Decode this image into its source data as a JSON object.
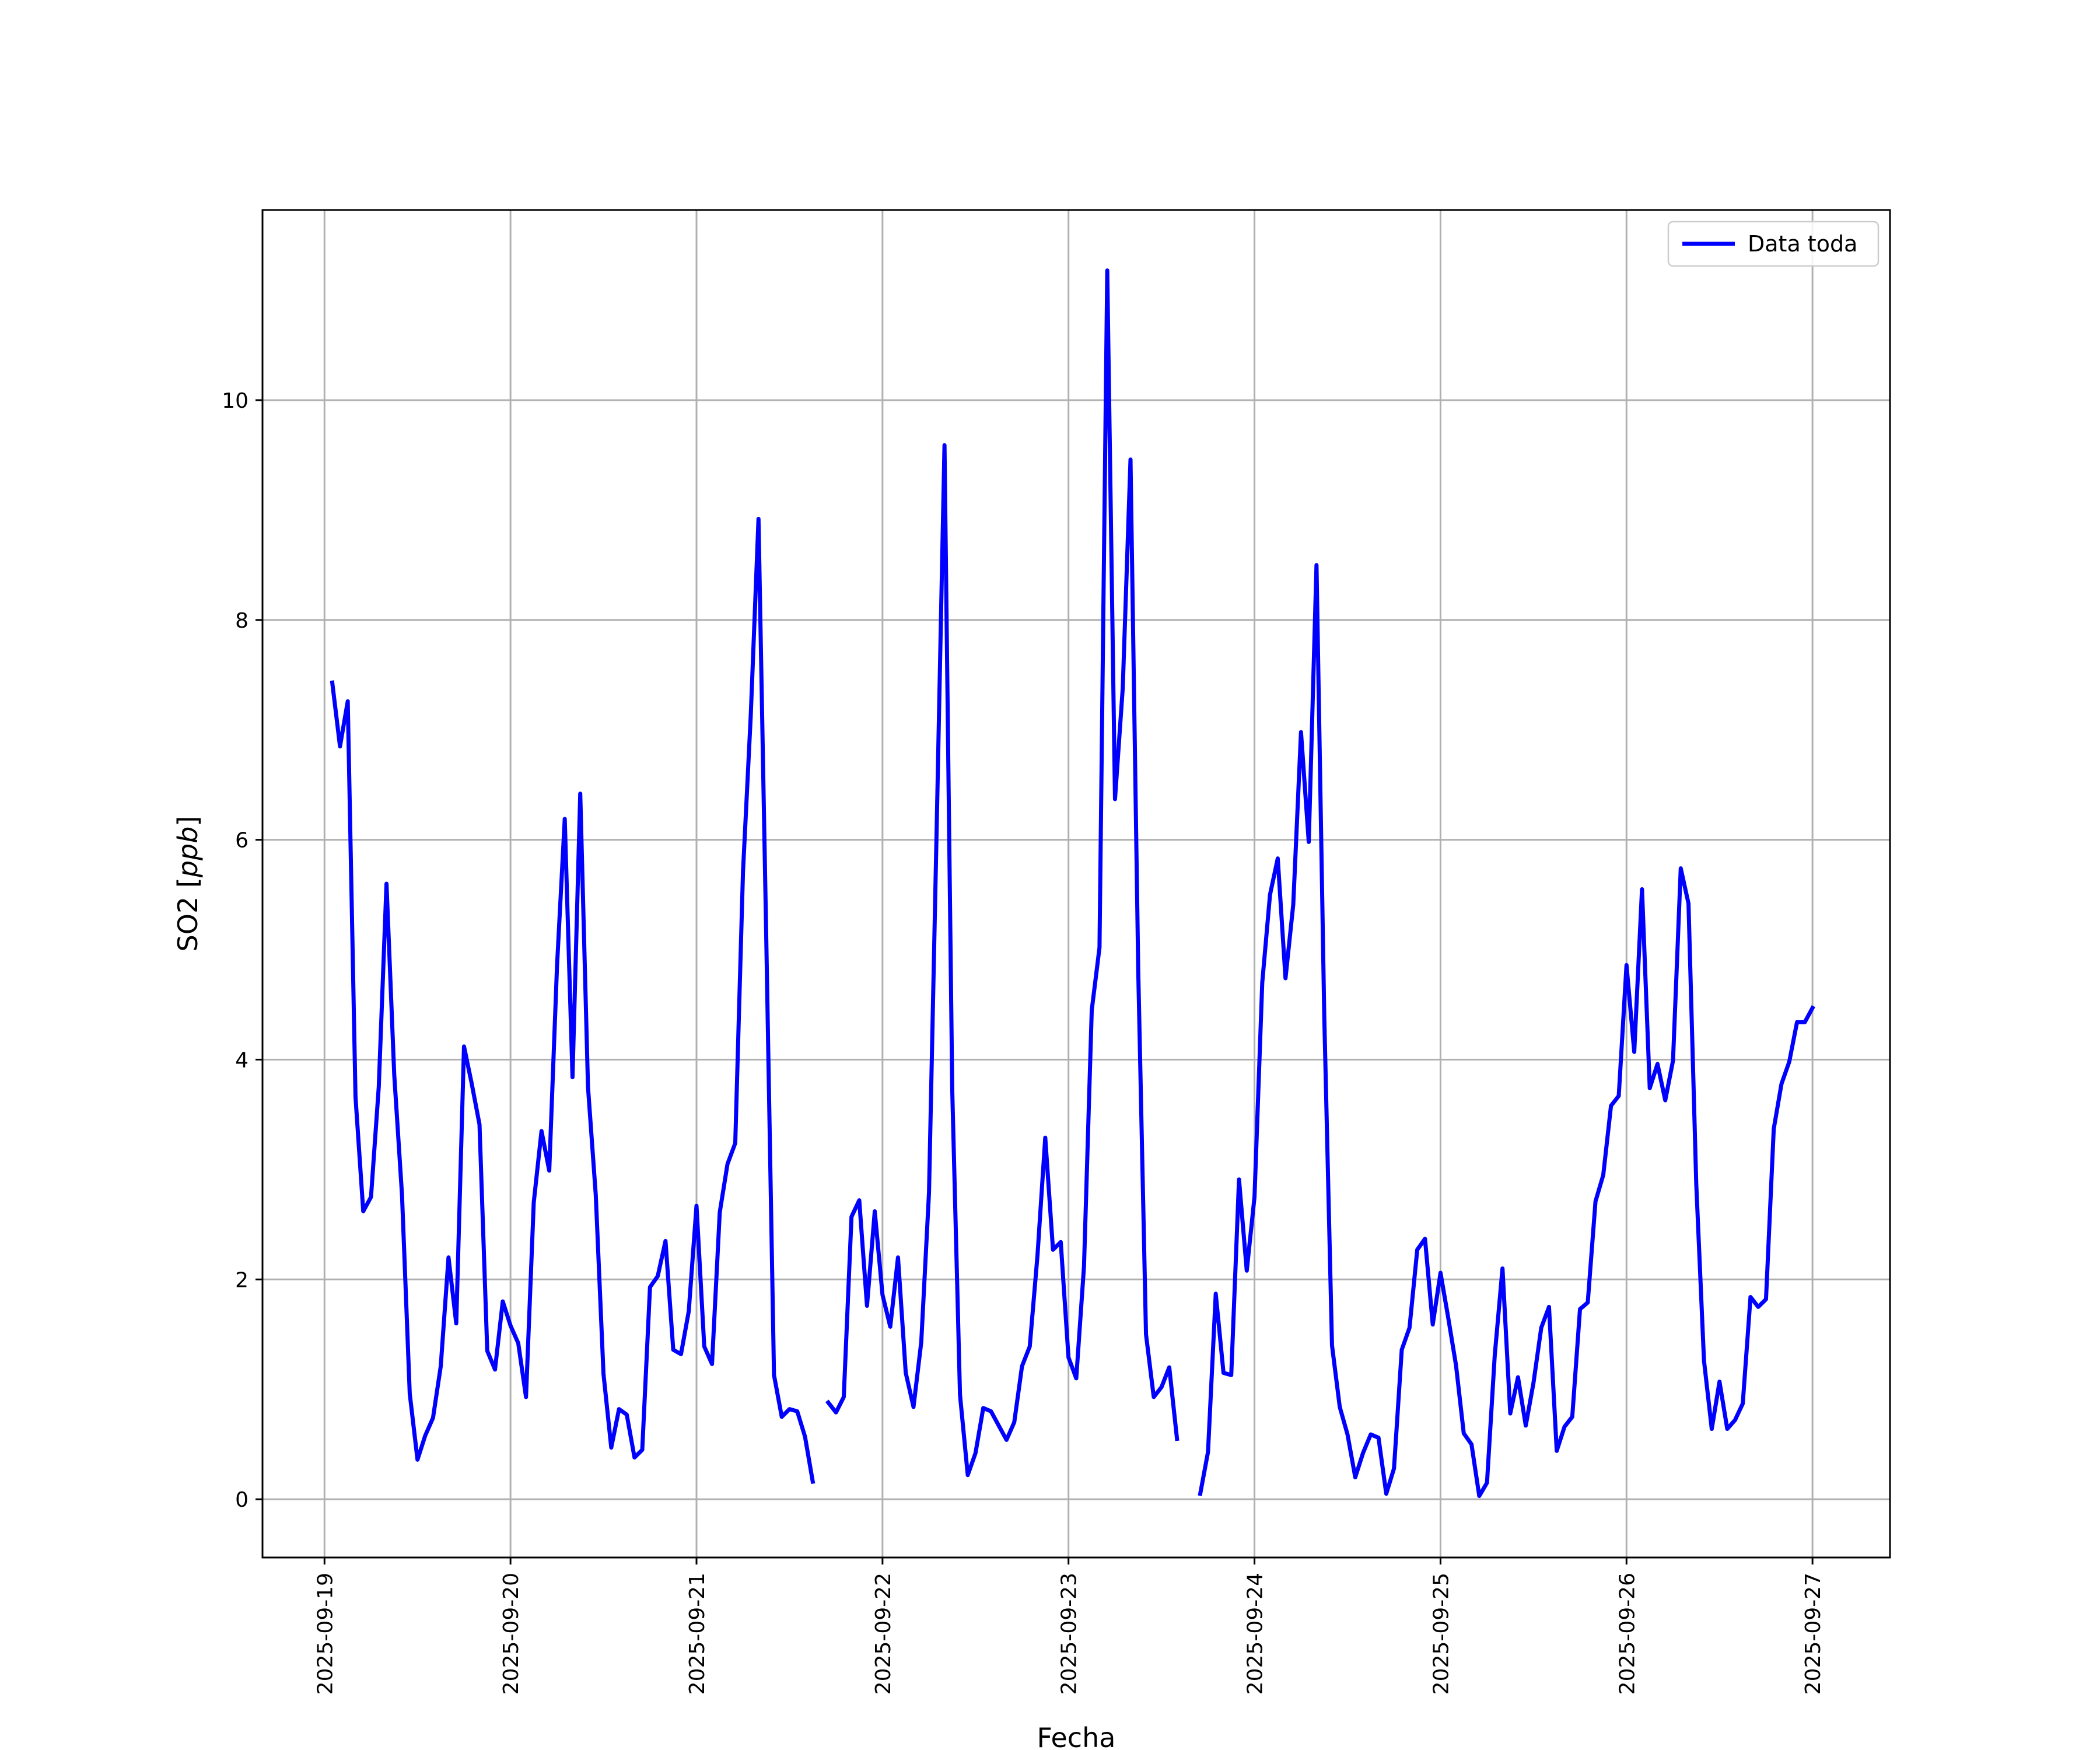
{
  "chart_data": {
    "type": "line",
    "xlabel": "Fecha",
    "ylabel": "SO2 [ppb]",
    "ylabel_plain": "SO2 [",
    "ylabel_italic": "ppb",
    "ylabel_close": "]",
    "xlim": [
      "2025-09-18 16:00",
      "2025-09-27 10:00"
    ],
    "ylim": [
      -0.53,
      11.73
    ],
    "xticks": [
      "2025-09-19",
      "2025-09-20",
      "2025-09-21",
      "2025-09-22",
      "2025-09-23",
      "2025-09-24",
      "2025-09-25",
      "2025-09-26",
      "2025-09-27"
    ],
    "yticks": [
      0,
      2,
      4,
      6,
      8,
      10
    ],
    "grid": true,
    "legend_position": "top-right",
    "series": [
      {
        "name": "Data toda",
        "color": "#0000ff",
        "points": [
          [
            "2025-09-19 01:00",
            7.43
          ],
          [
            "2025-09-19 02:00",
            6.85
          ],
          [
            "2025-09-19 03:00",
            7.26
          ],
          [
            "2025-09-19 04:00",
            3.66
          ],
          [
            "2025-09-19 05:00",
            2.62
          ],
          [
            "2025-09-19 06:00",
            2.75
          ],
          [
            "2025-09-19 07:00",
            3.75
          ],
          [
            "2025-09-19 08:00",
            5.6
          ],
          [
            "2025-09-19 09:00",
            3.86
          ],
          [
            "2025-09-19 10:00",
            2.77
          ],
          [
            "2025-09-19 11:00",
            0.96
          ],
          [
            "2025-09-19 12:00",
            0.36
          ],
          [
            "2025-09-19 13:00",
            0.58
          ],
          [
            "2025-09-19 14:00",
            0.74
          ],
          [
            "2025-09-19 15:00",
            1.21
          ],
          [
            "2025-09-19 16:00",
            2.2
          ],
          [
            "2025-09-19 17:00",
            1.6
          ],
          [
            "2025-09-19 18:00",
            4.12
          ],
          [
            "2025-09-19 19:00",
            3.78
          ],
          [
            "2025-09-19 20:00",
            3.41
          ],
          [
            "2025-09-19 21:00",
            1.35
          ],
          [
            "2025-09-19 22:00",
            1.18
          ],
          [
            "2025-09-19 23:00",
            1.8
          ],
          [
            "2025-09-20 00:00",
            1.58
          ],
          [
            "2025-09-20 01:00",
            1.42
          ],
          [
            "2025-09-20 02:00",
            0.93
          ],
          [
            "2025-09-20 03:00",
            2.7
          ],
          [
            "2025-09-20 04:00",
            3.35
          ],
          [
            "2025-09-20 05:00",
            2.99
          ],
          [
            "2025-09-20 06:00",
            4.85
          ],
          [
            "2025-09-20 07:00",
            6.19
          ],
          [
            "2025-09-20 08:00",
            3.84
          ],
          [
            "2025-09-20 09:00",
            6.42
          ],
          [
            "2025-09-20 10:00",
            3.75
          ],
          [
            "2025-09-20 11:00",
            2.77
          ],
          [
            "2025-09-20 12:00",
            1.14
          ],
          [
            "2025-09-20 13:00",
            0.47
          ],
          [
            "2025-09-20 14:00",
            0.82
          ],
          [
            "2025-09-20 15:00",
            0.77
          ],
          [
            "2025-09-20 16:00",
            0.38
          ],
          [
            "2025-09-20 17:00",
            0.45
          ],
          [
            "2025-09-20 18:00",
            1.93
          ],
          [
            "2025-09-20 19:00",
            2.03
          ],
          [
            "2025-09-20 20:00",
            2.35
          ],
          [
            "2025-09-20 21:00",
            1.36
          ],
          [
            "2025-09-20 22:00",
            1.32
          ],
          [
            "2025-09-20 23:00",
            1.71
          ],
          [
            "2025-09-21 00:00",
            2.67
          ],
          [
            "2025-09-21 01:00",
            1.39
          ],
          [
            "2025-09-21 02:00",
            1.23
          ],
          [
            "2025-09-21 03:00",
            2.61
          ],
          [
            "2025-09-21 04:00",
            3.05
          ],
          [
            "2025-09-21 05:00",
            3.24
          ],
          [
            "2025-09-21 06:00",
            5.71
          ],
          [
            "2025-09-21 07:00",
            7.13
          ],
          [
            "2025-09-21 08:00",
            8.92
          ],
          [
            "2025-09-21 09:00",
            5.11
          ],
          [
            "2025-09-21 10:00",
            1.13
          ],
          [
            "2025-09-21 11:00",
            0.75
          ],
          [
            "2025-09-21 12:00",
            0.82
          ],
          [
            "2025-09-21 13:00",
            0.8
          ],
          [
            "2025-09-21 14:00",
            0.57
          ],
          [
            "2025-09-21 15:00",
            0.16
          ],
          [
            "2025-09-21 16:00",
            null
          ],
          [
            "2025-09-21 17:00",
            0.88
          ],
          [
            "2025-09-21 18:00",
            0.79
          ],
          [
            "2025-09-21 19:00",
            0.93
          ],
          [
            "2025-09-21 20:00",
            2.57
          ],
          [
            "2025-09-21 21:00",
            2.72
          ],
          [
            "2025-09-21 22:00",
            1.76
          ],
          [
            "2025-09-21 23:00",
            2.62
          ],
          [
            "2025-09-22 00:00",
            1.86
          ],
          [
            "2025-09-22 01:00",
            1.57
          ],
          [
            "2025-09-22 02:00",
            2.2
          ],
          [
            "2025-09-22 03:00",
            1.15
          ],
          [
            "2025-09-22 04:00",
            0.84
          ],
          [
            "2025-09-22 05:00",
            1.43
          ],
          [
            "2025-09-22 06:00",
            2.79
          ],
          [
            "2025-09-22 07:00",
            6.14
          ],
          [
            "2025-09-22 08:00",
            9.59
          ],
          [
            "2025-09-22 09:00",
            3.72
          ],
          [
            "2025-09-22 10:00",
            0.95
          ],
          [
            "2025-09-22 11:00",
            0.22
          ],
          [
            "2025-09-22 12:00",
            0.42
          ],
          [
            "2025-09-22 13:00",
            0.83
          ],
          [
            "2025-09-22 14:00",
            0.8
          ],
          [
            "2025-09-22 15:00",
            0.67
          ],
          [
            "2025-09-22 16:00",
            0.54
          ],
          [
            "2025-09-22 17:00",
            0.7
          ],
          [
            "2025-09-22 18:00",
            1.21
          ],
          [
            "2025-09-22 19:00",
            1.39
          ],
          [
            "2025-09-22 20:00",
            2.22
          ],
          [
            "2025-09-22 21:00",
            3.29
          ],
          [
            "2025-09-22 22:00",
            2.27
          ],
          [
            "2025-09-22 23:00",
            2.34
          ],
          [
            "2025-09-23 00:00",
            1.29
          ],
          [
            "2025-09-23 01:00",
            1.1
          ],
          [
            "2025-09-23 02:00",
            2.12
          ],
          [
            "2025-09-23 03:00",
            4.45
          ],
          [
            "2025-09-23 04:00",
            5.02
          ],
          [
            "2025-09-23 05:00",
            11.18
          ],
          [
            "2025-09-23 06:00",
            6.37
          ],
          [
            "2025-09-23 07:00",
            7.38
          ],
          [
            "2025-09-23 08:00",
            9.46
          ],
          [
            "2025-09-23 09:00",
            4.8
          ],
          [
            "2025-09-23 10:00",
            1.5
          ],
          [
            "2025-09-23 11:00",
            0.93
          ],
          [
            "2025-09-23 12:00",
            1.02
          ],
          [
            "2025-09-23 13:00",
            1.2
          ],
          [
            "2025-09-23 14:00",
            0.55
          ],
          [
            "2025-09-23 15:00",
            null
          ],
          [
            "2025-09-23 16:00",
            null
          ],
          [
            "2025-09-23 17:00",
            0.05
          ],
          [
            "2025-09-23 18:00",
            0.43
          ],
          [
            "2025-09-23 19:00",
            1.87
          ],
          [
            "2025-09-23 20:00",
            1.15
          ],
          [
            "2025-09-23 21:00",
            1.13
          ],
          [
            "2025-09-23 22:00",
            2.91
          ],
          [
            "2025-09-23 23:00",
            2.08
          ],
          [
            "2025-09-24 00:00",
            2.75
          ],
          [
            "2025-09-24 01:00",
            4.7
          ],
          [
            "2025-09-24 02:00",
            5.5
          ],
          [
            "2025-09-24 03:00",
            5.83
          ],
          [
            "2025-09-24 04:00",
            4.74
          ],
          [
            "2025-09-24 05:00",
            5.41
          ],
          [
            "2025-09-24 06:00",
            6.98
          ],
          [
            "2025-09-24 07:00",
            5.98
          ],
          [
            "2025-09-24 08:00",
            8.5
          ],
          [
            "2025-09-24 09:00",
            4.4
          ],
          [
            "2025-09-24 10:00",
            1.4
          ],
          [
            "2025-09-24 11:00",
            0.84
          ],
          [
            "2025-09-24 12:00",
            0.59
          ],
          [
            "2025-09-24 13:00",
            0.2
          ],
          [
            "2025-09-24 14:00",
            0.42
          ],
          [
            "2025-09-24 15:00",
            0.59
          ],
          [
            "2025-09-24 16:00",
            0.56
          ],
          [
            "2025-09-24 17:00",
            0.05
          ],
          [
            "2025-09-24 18:00",
            0.28
          ],
          [
            "2025-09-24 19:00",
            1.36
          ],
          [
            "2025-09-24 20:00",
            1.56
          ],
          [
            "2025-09-24 21:00",
            2.27
          ],
          [
            "2025-09-24 22:00",
            2.37
          ],
          [
            "2025-09-24 23:00",
            1.59
          ],
          [
            "2025-09-25 00:00",
            2.06
          ],
          [
            "2025-09-25 01:00",
            1.65
          ],
          [
            "2025-09-25 02:00",
            1.22
          ],
          [
            "2025-09-25 03:00",
            0.6
          ],
          [
            "2025-09-25 04:00",
            0.5
          ],
          [
            "2025-09-25 05:00",
            0.03
          ],
          [
            "2025-09-25 06:00",
            0.15
          ],
          [
            "2025-09-25 07:00",
            1.31
          ],
          [
            "2025-09-25 08:00",
            2.1
          ],
          [
            "2025-09-25 09:00",
            0.78
          ],
          [
            "2025-09-25 10:00",
            1.11
          ],
          [
            "2025-09-25 11:00",
            0.67
          ],
          [
            "2025-09-25 12:00",
            1.06
          ],
          [
            "2025-09-25 13:00",
            1.56
          ],
          [
            "2025-09-25 14:00",
            1.75
          ],
          [
            "2025-09-25 15:00",
            0.44
          ],
          [
            "2025-09-25 16:00",
            0.66
          ],
          [
            "2025-09-25 17:00",
            0.75
          ],
          [
            "2025-09-25 18:00",
            1.73
          ],
          [
            "2025-09-25 19:00",
            1.79
          ],
          [
            "2025-09-25 20:00",
            2.71
          ],
          [
            "2025-09-25 21:00",
            2.95
          ],
          [
            "2025-09-25 22:00",
            3.58
          ],
          [
            "2025-09-25 23:00",
            3.67
          ],
          [
            "2025-09-26 00:00",
            4.86
          ],
          [
            "2025-09-26 01:00",
            4.07
          ],
          [
            "2025-09-26 02:00",
            5.55
          ],
          [
            "2025-09-26 03:00",
            3.74
          ],
          [
            "2025-09-26 04:00",
            3.96
          ],
          [
            "2025-09-26 05:00",
            3.63
          ],
          [
            "2025-09-26 06:00",
            3.99
          ],
          [
            "2025-09-26 07:00",
            5.74
          ],
          [
            "2025-09-26 08:00",
            5.42
          ],
          [
            "2025-09-26 09:00",
            2.87
          ],
          [
            "2025-09-26 10:00",
            1.26
          ],
          [
            "2025-09-26 11:00",
            0.64
          ],
          [
            "2025-09-26 12:00",
            1.07
          ],
          [
            "2025-09-26 13:00",
            0.64
          ],
          [
            "2025-09-26 14:00",
            0.72
          ],
          [
            "2025-09-26 15:00",
            0.87
          ],
          [
            "2025-09-26 16:00",
            1.84
          ],
          [
            "2025-09-26 17:00",
            1.75
          ],
          [
            "2025-09-26 18:00",
            1.82
          ],
          [
            "2025-09-26 19:00",
            3.37
          ],
          [
            "2025-09-26 20:00",
            3.78
          ],
          [
            "2025-09-26 21:00",
            3.98
          ],
          [
            "2025-09-26 22:00",
            4.34
          ],
          [
            "2025-09-26 23:00",
            4.34
          ],
          [
            "2025-09-27 00:00",
            4.47
          ]
        ]
      }
    ]
  }
}
